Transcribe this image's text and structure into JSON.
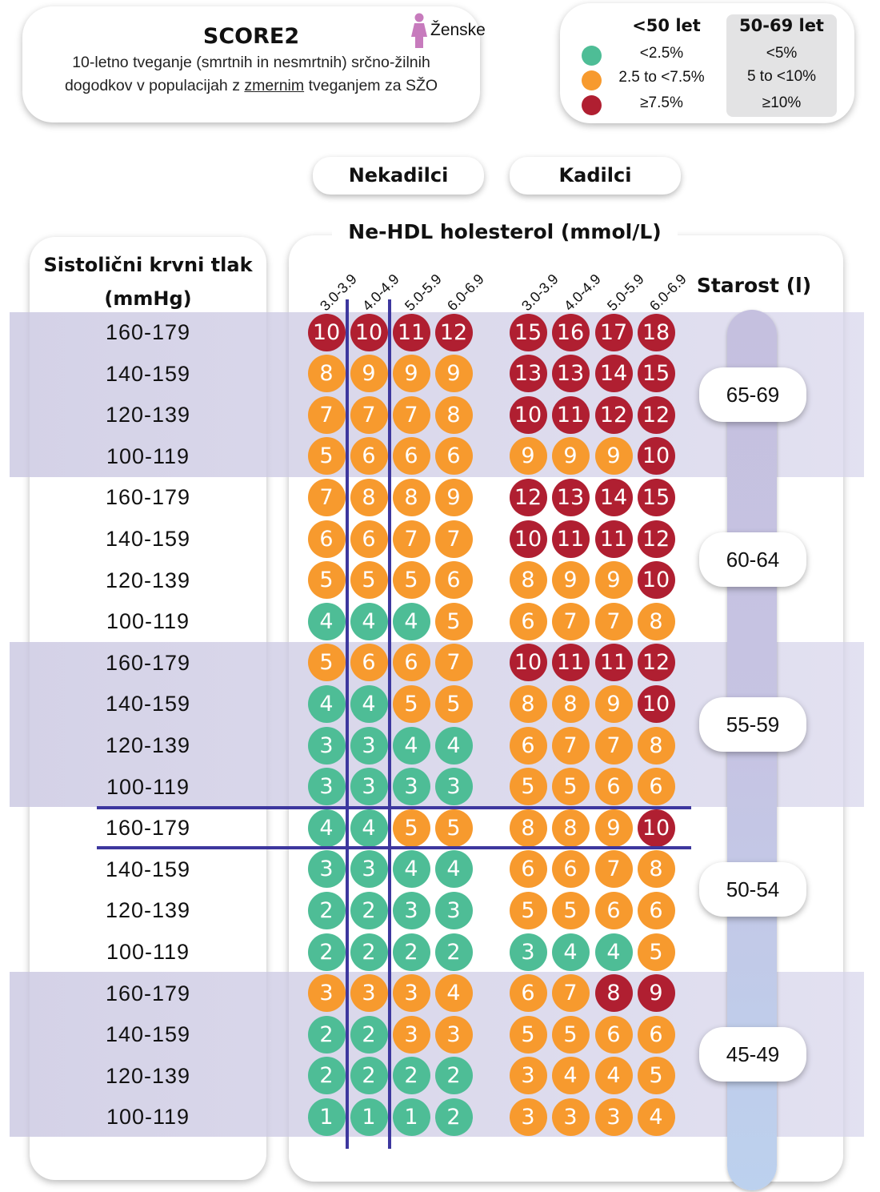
{
  "header": {
    "title": "SCORE2",
    "gender_label": "Ženske",
    "subtitle_part1": "10-letno tveganje (smrtnih in nesmrtnih) srčno-žilnih dogodkov v populacijah z",
    "subtitle_underlined": "zmernim",
    "subtitle_part2": "tveganjem za SŽO"
  },
  "legend": {
    "col1_title": "<50 let",
    "col2_title": "50-69 let",
    "rows": [
      {
        "color": "#4ebd96",
        "under50": "<2.5%",
        "age50_69": "<5%"
      },
      {
        "color": "#f79a2e",
        "under50": "2.5 to <7.5%",
        "age50_69": "5 to <10%"
      },
      {
        "color": "#b01f31",
        "under50": "≥7.5%",
        "age50_69": "≥10%"
      }
    ]
  },
  "colors": {
    "low": "#4ebd96",
    "mid": "#f79a2e",
    "high": "#b01f31",
    "line": "#3d379e"
  },
  "groups": {
    "nonsmoker": "Nekadilci",
    "smoker": "Kadilci"
  },
  "chart_data": {
    "type": "table",
    "title": "SCORE2",
    "x_title": "Ne-HDL holesterol (mmol/L)",
    "y_title": "Sistolični krvni tlak (mmHg)",
    "age_title": "Starost (l)",
    "cholesterol_bins": [
      "3.0-3.9",
      "4.0-4.9",
      "5.0-5.9",
      "6.0-6.9"
    ],
    "sbp_bins": [
      "160-179",
      "140-159",
      "120-139",
      "100-119"
    ],
    "age_groups": [
      {
        "age": "65-69",
        "nonsmoker": [
          [
            10,
            10,
            11,
            12
          ],
          [
            8,
            9,
            9,
            9
          ],
          [
            7,
            7,
            7,
            8
          ],
          [
            5,
            6,
            6,
            6
          ]
        ],
        "smoker": [
          [
            15,
            16,
            17,
            18
          ],
          [
            13,
            13,
            14,
            15
          ],
          [
            10,
            11,
            12,
            12
          ],
          [
            9,
            9,
            9,
            10
          ]
        ]
      },
      {
        "age": "60-64",
        "nonsmoker": [
          [
            7,
            8,
            8,
            9
          ],
          [
            6,
            6,
            7,
            7
          ],
          [
            5,
            5,
            5,
            6
          ],
          [
            4,
            4,
            4,
            5
          ]
        ],
        "smoker": [
          [
            12,
            13,
            14,
            15
          ],
          [
            10,
            11,
            11,
            12
          ],
          [
            8,
            9,
            9,
            10
          ],
          [
            6,
            7,
            7,
            8
          ]
        ]
      },
      {
        "age": "55-59",
        "nonsmoker": [
          [
            5,
            6,
            6,
            7
          ],
          [
            4,
            4,
            5,
            5
          ],
          [
            3,
            3,
            4,
            4
          ],
          [
            3,
            3,
            3,
            3
          ]
        ],
        "smoker": [
          [
            10,
            11,
            11,
            12
          ],
          [
            8,
            8,
            9,
            10
          ],
          [
            6,
            7,
            7,
            8
          ],
          [
            5,
            5,
            6,
            6
          ]
        ]
      },
      {
        "age": "50-54",
        "nonsmoker": [
          [
            4,
            4,
            5,
            5
          ],
          [
            3,
            3,
            4,
            4
          ],
          [
            2,
            2,
            3,
            3
          ],
          [
            2,
            2,
            2,
            2
          ]
        ],
        "smoker": [
          [
            8,
            8,
            9,
            10
          ],
          [
            6,
            6,
            7,
            8
          ],
          [
            5,
            5,
            6,
            6
          ],
          [
            3,
            4,
            4,
            5
          ]
        ]
      },
      {
        "age": "45-49",
        "nonsmoker": [
          [
            3,
            3,
            3,
            4
          ],
          [
            2,
            2,
            3,
            3
          ],
          [
            2,
            2,
            2,
            2
          ],
          [
            1,
            1,
            1,
            2
          ]
        ],
        "smoker": [
          [
            6,
            7,
            8,
            9
          ],
          [
            5,
            5,
            6,
            6
          ],
          [
            3,
            4,
            4,
            5
          ],
          [
            3,
            3,
            3,
            4
          ]
        ]
      }
    ]
  }
}
